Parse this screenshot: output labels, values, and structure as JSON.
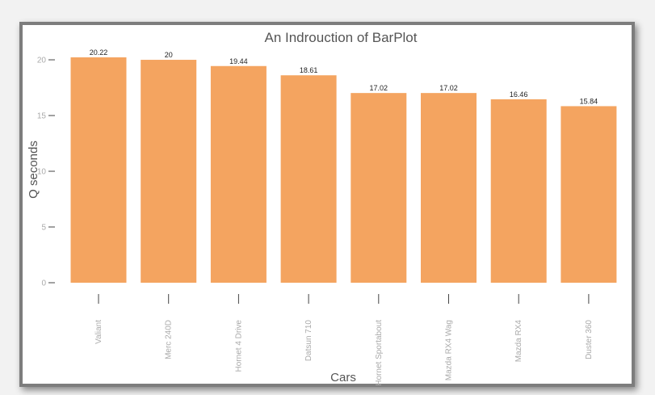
{
  "chart_data": {
    "type": "bar",
    "title": "An Indrouction of BarPlot",
    "xlabel": "Cars",
    "ylabel": "Q seconds",
    "categories": [
      "Valiant",
      "Merc 240D",
      "Hornet 4 Drive",
      "Datsun 710",
      "Hornet Sportabout",
      "Mazda RX4 Wag",
      "Mazda RX4",
      "Duster 360"
    ],
    "values": [
      20.22,
      20,
      19.44,
      18.61,
      17.02,
      17.02,
      16.46,
      15.84
    ],
    "value_labels": [
      "20.22",
      "20",
      "19.44",
      "18.61",
      "17.02",
      "17.02",
      "16.46",
      "15.84"
    ],
    "yticks": [
      0,
      5,
      10,
      15,
      20
    ],
    "ytick_labels": [
      "0",
      "5",
      "10",
      "15",
      "20"
    ],
    "ylim": [
      0,
      20.22
    ],
    "grid": false,
    "legend": "none",
    "bar_color": "#f4a460"
  }
}
